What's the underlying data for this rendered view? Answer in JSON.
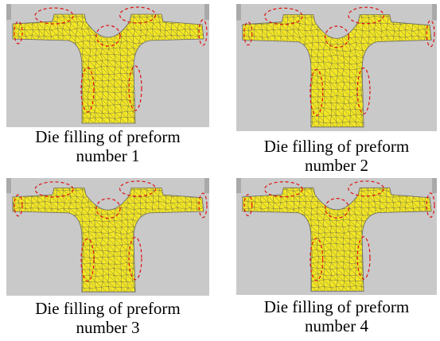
{
  "panels": [
    {
      "caption_line1": "Die filling of preform",
      "caption_line2": "number 1"
    },
    {
      "caption_line1": "Die filling of preform",
      "caption_line2": "number 2"
    },
    {
      "caption_line1": "Die filling of preform",
      "caption_line2": "number 3"
    },
    {
      "caption_line1": "Die filling of preform",
      "caption_line2": "number 4"
    }
  ],
  "colors": {
    "background": "#c9c9c9",
    "die_edge": "#a9a9a9",
    "preform_fill": "#f2e625",
    "mesh_line": "#555555",
    "highlight_circle": "#e01010"
  }
}
